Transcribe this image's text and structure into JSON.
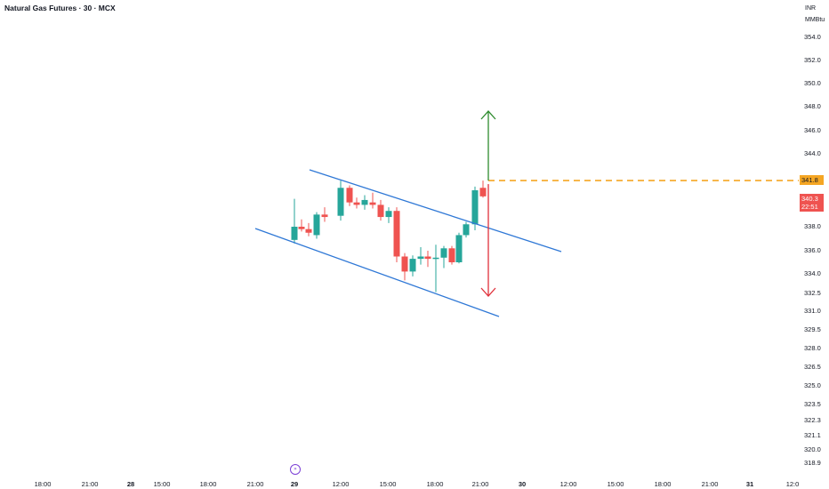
{
  "header": {
    "title": "Natural Gas Futures · 30 · MCX"
  },
  "axis": {
    "currency": "INR",
    "unit": "MMBtu",
    "y_ticks": [
      "354.0",
      "352.0",
      "350.0",
      "348.0",
      "346.0",
      "344.0",
      "338.0",
      "336.0",
      "334.0",
      "332.5",
      "331.0",
      "329.5",
      "328.0",
      "326.5",
      "325.0",
      "323.5",
      "322.3",
      "321.1",
      "320.0",
      "318.9"
    ],
    "x_ticks": [
      {
        "label": "18:00",
        "bold": false
      },
      {
        "label": "21:00",
        "bold": false
      },
      {
        "label": "28",
        "bold": true
      },
      {
        "label": "15:00",
        "bold": false
      },
      {
        "label": "18:00",
        "bold": false
      },
      {
        "label": "21:00",
        "bold": false
      },
      {
        "label": "29",
        "bold": true
      },
      {
        "label": "12:00",
        "bold": false
      },
      {
        "label": "15:00",
        "bold": false
      },
      {
        "label": "18:00",
        "bold": false
      },
      {
        "label": "21:00",
        "bold": false
      },
      {
        "label": "30",
        "bold": true
      },
      {
        "label": "12:00",
        "bold": false
      },
      {
        "label": "15:00",
        "bold": false
      },
      {
        "label": "18:00",
        "bold": false
      },
      {
        "label": "21:00",
        "bold": false
      },
      {
        "label": "31",
        "bold": true
      },
      {
        "label": "12:0",
        "bold": false
      }
    ]
  },
  "price_labels": {
    "level": "341.8",
    "last": "340.3",
    "countdown": "22:51"
  },
  "event_badge": "»",
  "colors": {
    "up": "#26a69a",
    "down": "#ef5350",
    "channel": "#2f78d6",
    "level": "#f5a623",
    "target_up": "#2e8b2e",
    "target_down": "#e0303a"
  },
  "chart_data": {
    "type": "candlestick",
    "title": "Natural Gas Futures · 30 · MCX",
    "ylim": [
      318.9,
      355.0
    ],
    "candles": [
      {
        "time": "29 00:00",
        "o": 336.9,
        "h": 340.3,
        "l": 336.6,
        "c": 338.0
      },
      {
        "time": "29 00:30",
        "o": 338.0,
        "h": 338.6,
        "l": 337.6,
        "c": 337.8
      },
      {
        "time": "29 01:00",
        "o": 337.8,
        "h": 338.3,
        "l": 337.2,
        "c": 337.5
      },
      {
        "time": "29 01:30",
        "o": 337.3,
        "h": 339.2,
        "l": 337.0,
        "c": 339.0
      },
      {
        "time": "29 02:00",
        "o": 339.0,
        "h": 339.6,
        "l": 338.4,
        "c": 338.8
      },
      {
        "time": "29 11:30",
        "o": 338.9,
        "h": 341.8,
        "l": 338.5,
        "c": 341.2
      },
      {
        "time": "29 12:00",
        "o": 341.2,
        "h": 341.4,
        "l": 339.7,
        "c": 340.0
      },
      {
        "time": "29 12:30",
        "o": 340.0,
        "h": 340.4,
        "l": 339.5,
        "c": 339.8
      },
      {
        "time": "29 13:00",
        "o": 339.8,
        "h": 340.6,
        "l": 339.4,
        "c": 340.2
      },
      {
        "time": "29 13:30",
        "o": 340.0,
        "h": 340.8,
        "l": 339.5,
        "c": 339.8
      },
      {
        "time": "29 14:00",
        "o": 339.8,
        "h": 340.2,
        "l": 338.5,
        "c": 338.8
      },
      {
        "time": "29 14:30",
        "o": 338.8,
        "h": 339.6,
        "l": 338.3,
        "c": 339.3
      },
      {
        "time": "29 15:00",
        "o": 339.3,
        "h": 339.6,
        "l": 335.0,
        "c": 335.5
      },
      {
        "time": "29 15:30",
        "o": 335.5,
        "h": 335.8,
        "l": 333.5,
        "c": 334.2
      },
      {
        "time": "29 16:00",
        "o": 334.2,
        "h": 335.6,
        "l": 333.8,
        "c": 335.3
      },
      {
        "time": "29 16:30",
        "o": 335.3,
        "h": 336.3,
        "l": 334.8,
        "c": 335.5
      },
      {
        "time": "29 17:00",
        "o": 335.5,
        "h": 336.0,
        "l": 334.6,
        "c": 335.3
      },
      {
        "time": "29 17:30",
        "o": 335.3,
        "h": 336.5,
        "l": 332.6,
        "c": 335.4
      },
      {
        "time": "29 18:00",
        "o": 335.4,
        "h": 336.4,
        "l": 334.5,
        "c": 336.2
      },
      {
        "time": "29 18:30",
        "o": 336.2,
        "h": 336.4,
        "l": 334.8,
        "c": 335.0
      },
      {
        "time": "29 19:00",
        "o": 335.0,
        "h": 337.5,
        "l": 334.9,
        "c": 337.3
      },
      {
        "time": "29 19:30",
        "o": 337.3,
        "h": 338.4,
        "l": 337.1,
        "c": 338.2
      },
      {
        "time": "29 20:00",
        "o": 338.2,
        "h": 341.3,
        "l": 337.7,
        "c": 341.0
      },
      {
        "time": "29 20:30",
        "o": 341.2,
        "h": 341.8,
        "l": 340.4,
        "c": 340.5
      }
    ],
    "annotations": [
      {
        "kind": "channel_upper",
        "from": {
          "time": "29 01:00",
          "price": 343.4
        },
        "to": {
          "time": "30 12:00",
          "price": 336.3
        }
      },
      {
        "kind": "channel_lower",
        "from": {
          "time": "28 21:00",
          "price": 338.1
        },
        "to": {
          "time": "30 03:00",
          "price": 330.8
        }
      },
      {
        "kind": "horizontal_level",
        "price": 341.8
      },
      {
        "kind": "target_arrow_up",
        "from": 341.8,
        "to": 347.9
      },
      {
        "kind": "target_arrow_down",
        "from": 341.8,
        "to": 332.5
      }
    ]
  }
}
